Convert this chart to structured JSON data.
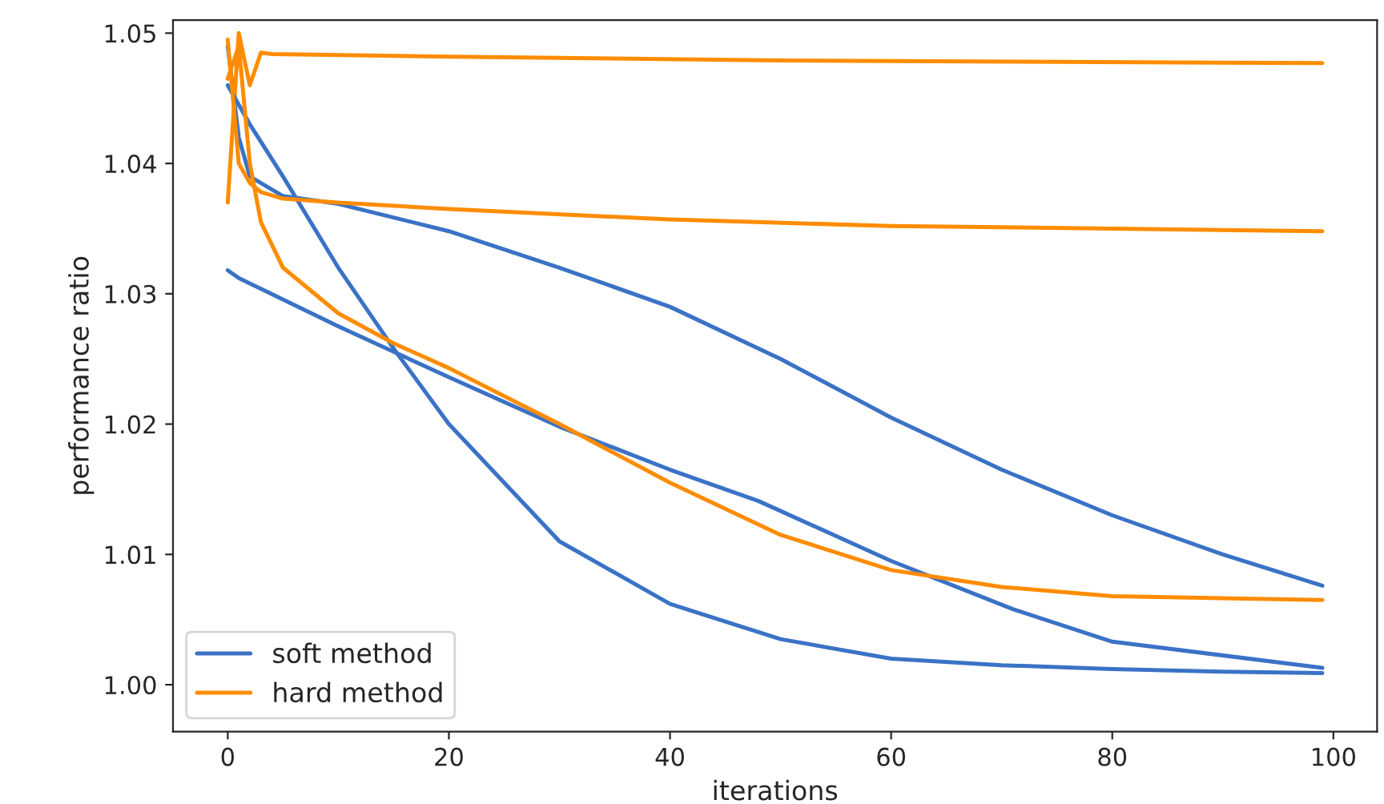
{
  "chart_data": {
    "type": "line",
    "xlabel": "iterations",
    "ylabel": "performance ratio",
    "xlim": [
      -4.95,
      103.95
    ],
    "ylim": [
      0.9964,
      1.051
    ],
    "xticks": [
      0,
      20,
      40,
      60,
      80,
      100
    ],
    "yticks": [
      {
        "value": 1.0,
        "label": "1.00"
      },
      {
        "value": 1.01,
        "label": "1.01"
      },
      {
        "value": 1.02,
        "label": "1.02"
      },
      {
        "value": 1.03,
        "label": "1.03"
      },
      {
        "value": 1.04,
        "label": "1.04"
      },
      {
        "value": 1.05,
        "label": "1.05"
      }
    ],
    "legend": "bottom left",
    "grid": false,
    "marker": "none",
    "line_style": "solid",
    "series": [
      {
        "name": "soft method",
        "color": "#3a72c6",
        "x": [
          0,
          1,
          2,
          5,
          10,
          20,
          30,
          40,
          50,
          60,
          70,
          80,
          90,
          99
        ],
        "values": [
          1.049,
          1.042,
          1.039,
          1.0375,
          1.0369,
          1.0348,
          1.032,
          1.029,
          1.025,
          1.0205,
          1.0165,
          1.013,
          1.01,
          1.0076
        ]
      },
      {
        "name": "hard method",
        "color": "#ff8c00",
        "x": [
          0,
          1,
          2,
          3,
          4,
          20,
          50,
          99
        ],
        "values": [
          1.037,
          1.05,
          1.046,
          1.0485,
          1.0484,
          1.0482,
          1.0479,
          1.0477
        ]
      },
      {
        "color": "#3a72c6",
        "x": [
          0,
          2,
          5,
          10,
          15,
          20,
          30,
          40,
          50,
          60,
          70,
          80,
          90,
          99
        ],
        "values": [
          1.046,
          1.043,
          1.039,
          1.032,
          1.0258,
          1.02,
          1.011,
          1.0062,
          1.0035,
          1.002,
          1.0015,
          1.0012,
          1.001,
          1.0009
        ]
      },
      {
        "color": "#3a72c6",
        "x": [
          0,
          1,
          10,
          20,
          30,
          40,
          48,
          60,
          71,
          80,
          99
        ],
        "values": [
          1.0318,
          1.0312,
          1.0275,
          1.0236,
          1.0198,
          1.0165,
          1.0141,
          1.0095,
          1.0058,
          1.0033,
          1.0013
        ]
      },
      {
        "color": "#ff8c00",
        "x": [
          0,
          1,
          2,
          3,
          5,
          10,
          20,
          40,
          60,
          80,
          99
        ],
        "values": [
          1.0495,
          1.04,
          1.0385,
          1.0378,
          1.0373,
          1.037,
          1.0365,
          1.0357,
          1.0352,
          1.035,
          1.0348
        ]
      },
      {
        "color": "#ff8c00",
        "x": [
          0,
          1,
          2,
          3,
          5,
          10,
          15,
          20,
          30,
          40,
          50,
          60,
          70,
          80,
          99
        ],
        "values": [
          1.0465,
          1.049,
          1.04,
          1.0355,
          1.032,
          1.0285,
          1.0262,
          1.0243,
          1.02,
          1.0155,
          1.0115,
          1.0088,
          1.0075,
          1.0068,
          1.0065
        ]
      }
    ]
  }
}
